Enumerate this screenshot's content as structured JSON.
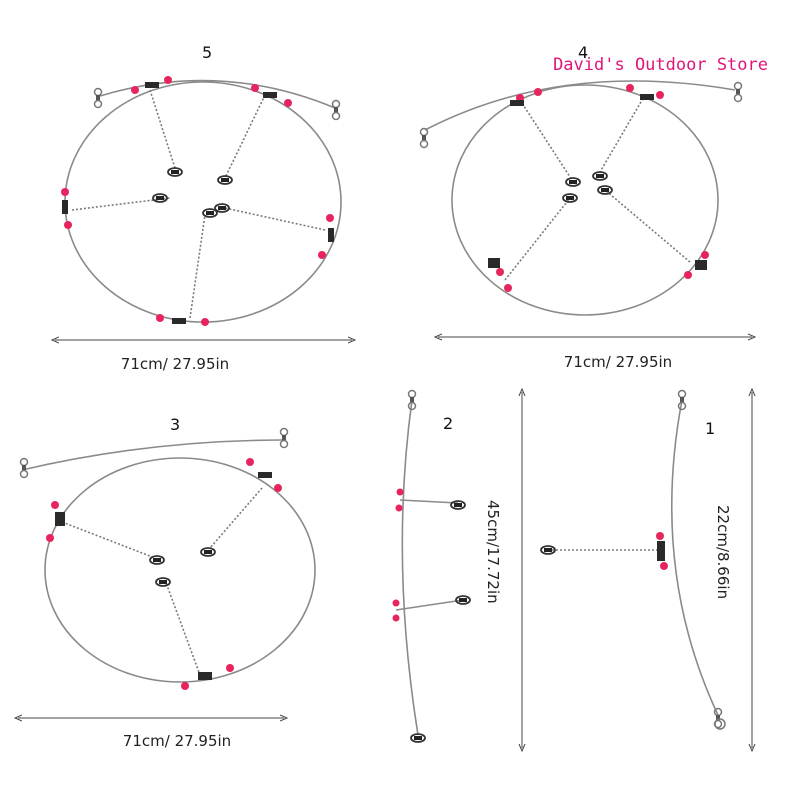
{
  "store_name": "David's Outdoor Store",
  "colors": {
    "bead": "#e8245e",
    "wire": "#8a8a8a",
    "sleeve": "#2a2a2a",
    "store_text": "#e0157a"
  },
  "rigs": [
    {
      "number": "5",
      "measurement": "71cm/ 27.95in"
    },
    {
      "number": "4",
      "measurement": "71cm/ 27.95in"
    },
    {
      "number": "3",
      "measurement": "71cm/ 27.95in"
    },
    {
      "number": "2",
      "measurement": "45cm/17.72in"
    },
    {
      "number": "1",
      "measurement": "22cm/8.66in"
    }
  ]
}
